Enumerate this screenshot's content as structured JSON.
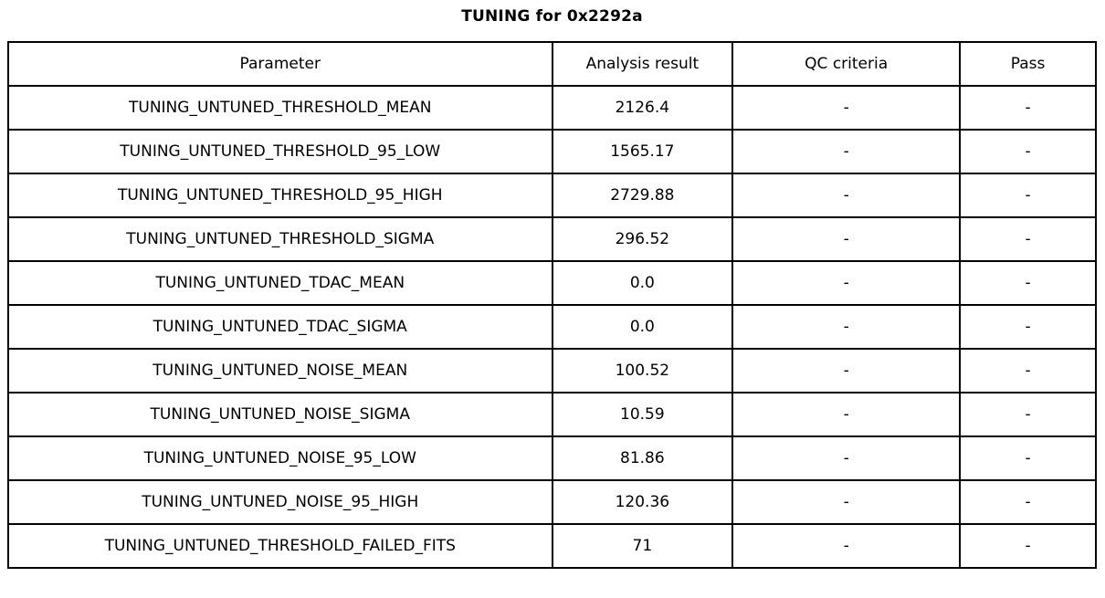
{
  "title": "TUNING for 0x2292a",
  "table": {
    "columns": {
      "parameter": "Parameter",
      "analysis_result": "Analysis result",
      "qc_criteria": "QC criteria",
      "pass": "Pass"
    },
    "rows": [
      {
        "parameter": "TUNING_UNTUNED_THRESHOLD_MEAN",
        "analysis_result": "2126.4",
        "qc_criteria": "-",
        "pass": "-"
      },
      {
        "parameter": "TUNING_UNTUNED_THRESHOLD_95_LOW",
        "analysis_result": "1565.17",
        "qc_criteria": "-",
        "pass": "-"
      },
      {
        "parameter": "TUNING_UNTUNED_THRESHOLD_95_HIGH",
        "analysis_result": "2729.88",
        "qc_criteria": "-",
        "pass": "-"
      },
      {
        "parameter": "TUNING_UNTUNED_THRESHOLD_SIGMA",
        "analysis_result": "296.52",
        "qc_criteria": "-",
        "pass": "-"
      },
      {
        "parameter": "TUNING_UNTUNED_TDAC_MEAN",
        "analysis_result": "0.0",
        "qc_criteria": "-",
        "pass": "-"
      },
      {
        "parameter": "TUNING_UNTUNED_TDAC_SIGMA",
        "analysis_result": "0.0",
        "qc_criteria": "-",
        "pass": "-"
      },
      {
        "parameter": "TUNING_UNTUNED_NOISE_MEAN",
        "analysis_result": "100.52",
        "qc_criteria": "-",
        "pass": "-"
      },
      {
        "parameter": "TUNING_UNTUNED_NOISE_SIGMA",
        "analysis_result": "10.59",
        "qc_criteria": "-",
        "pass": "-"
      },
      {
        "parameter": "TUNING_UNTUNED_NOISE_95_LOW",
        "analysis_result": "81.86",
        "qc_criteria": "-",
        "pass": "-"
      },
      {
        "parameter": "TUNING_UNTUNED_NOISE_95_HIGH",
        "analysis_result": "120.36",
        "qc_criteria": "-",
        "pass": "-"
      },
      {
        "parameter": "TUNING_UNTUNED_THRESHOLD_FAILED_FITS",
        "analysis_result": "71",
        "qc_criteria": "-",
        "pass": "-"
      }
    ]
  }
}
